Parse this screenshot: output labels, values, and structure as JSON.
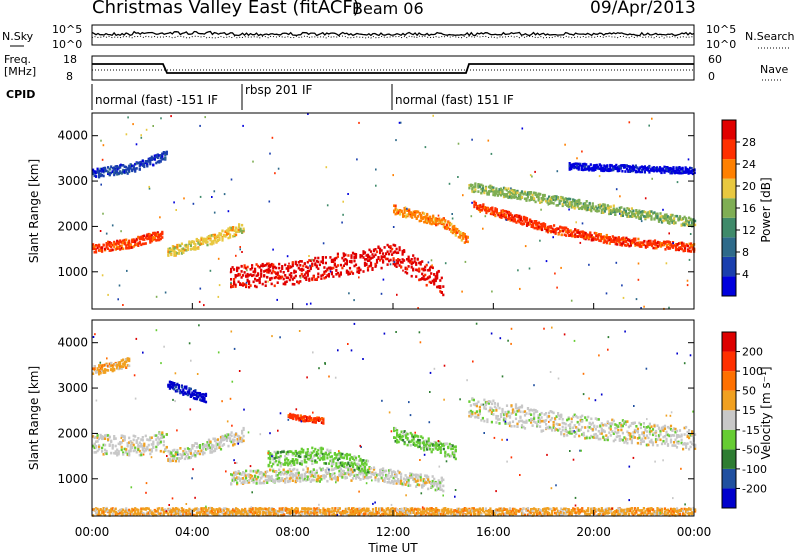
{
  "header": {
    "title": "Christmas Valley East (fitACF)",
    "beam": "Beam 06",
    "date": "09/Apr/2013"
  },
  "panels": {
    "nsky_label": "N.Sky",
    "nsearch_label": "N.Search",
    "nsky_ticks": [
      "10^5",
      "10^0"
    ],
    "nsky_right_ticks": [
      "10^5",
      "10^0"
    ],
    "freq_label_1": "Freq.",
    "freq_label_2": "[MHz]",
    "freq_ticks": [
      "18",
      "8"
    ],
    "nave_ticks": [
      "60",
      "0"
    ],
    "nave_label": "Nave",
    "cpid_label": "CPID",
    "cpid_segments": [
      {
        "label": "normal (fast) -151 IF",
        "start_h": 0,
        "end_h": 6
      },
      {
        "label": "rbsp 201 IF",
        "start_h": 6,
        "end_h": 12
      },
      {
        "label": "normal (fast) 151 IF",
        "start_h": 12,
        "end_h": 24
      }
    ]
  },
  "colors": {
    "power": [
      "#0000dd",
      "#1a3fae",
      "#2e6a8a",
      "#3f8a6a",
      "#7fae54",
      "#e8c840",
      "#ff8000",
      "#ff3000",
      "#e00000"
    ],
    "velocity": [
      "#0000cc",
      "#2050a0",
      "#2e7d32",
      "#66cc33",
      "#c8c8c8",
      "#f0a020",
      "#ff7000",
      "#ff3000",
      "#dd0000"
    ]
  },
  "colorbars": {
    "power": {
      "label": "Power [dB]",
      "ticks": [
        "28",
        "24",
        "20",
        "16",
        "12",
        "8",
        "4"
      ]
    },
    "velocity": {
      "label": "Velocity [m s⁻¹]",
      "ticks": [
        "200",
        "100",
        "50",
        "15",
        "-15",
        "-50",
        "-100",
        "-200"
      ]
    }
  },
  "chart_data": [
    {
      "type": "heatmap",
      "ylabel": "Slant Range [km]",
      "yticks": [
        "4000",
        "3000",
        "2000",
        "1000"
      ],
      "ylim": [
        180,
        4500
      ],
      "xlim": [
        0,
        24
      ],
      "quantity": "power",
      "bands": [
        {
          "x": [
            0,
            1.5,
            2.8
          ],
          "y": [
            1550,
            1650,
            1850
          ],
          "w": 200,
          "level": 7
        },
        {
          "x": [
            3,
            4.5,
            6
          ],
          "y": [
            1450,
            1700,
            2000
          ],
          "w": 220,
          "level": 5
        },
        {
          "x": [
            5.5,
            8,
            10,
            12,
            14
          ],
          "y": [
            900,
            1000,
            1200,
            1400,
            750
          ],
          "w": 500,
          "level": 8
        },
        {
          "x": [
            12,
            14,
            15
          ],
          "y": [
            2400,
            2100,
            1700
          ],
          "w": 200,
          "level": 6
        },
        {
          "x": [
            15.2,
            18,
            21,
            24
          ],
          "y": [
            2500,
            2000,
            1700,
            1550
          ],
          "w": 180,
          "level": 7
        },
        {
          "x": [
            15,
            24
          ],
          "y": [
            2900,
            2100
          ],
          "w": 200,
          "level": 4
        },
        {
          "x": [
            0,
            1.5,
            3
          ],
          "y": [
            3200,
            3300,
            3600
          ],
          "w": 200,
          "level": 1
        },
        {
          "x": [
            19,
            24
          ],
          "y": [
            3350,
            3250
          ],
          "w": 140,
          "level": 0
        }
      ]
    },
    {
      "type": "heatmap",
      "ylabel": "Slant Range [km]",
      "yticks": [
        "4000",
        "3000",
        "2000",
        "1000"
      ],
      "ylim": [
        180,
        4500
      ],
      "xlim": [
        0,
        24
      ],
      "xlabel": "Time UT",
      "xticks": [
        "00:00",
        "04:00",
        "08:00",
        "12:00",
        "16:00",
        "20:00",
        "00:00"
      ],
      "quantity": "velocity",
      "bands": [
        {
          "x": [
            0,
            1.5,
            3
          ],
          "y": [
            1800,
            1750,
            1850
          ],
          "w": 450,
          "level": 4
        },
        {
          "x": [
            3,
            5,
            6
          ],
          "y": [
            1500,
            1800,
            2000
          ],
          "w": 300,
          "level": 4
        },
        {
          "x": [
            5.5,
            8,
            11,
            14
          ],
          "y": [
            1050,
            1100,
            1150,
            900
          ],
          "w": 300,
          "level": 4
        },
        {
          "x": [
            7,
            9,
            11
          ],
          "y": [
            1450,
            1550,
            1300
          ],
          "w": 350,
          "level": 3
        },
        {
          "x": [
            12,
            14.5
          ],
          "y": [
            2000,
            1600
          ],
          "w": 300,
          "level": 3
        },
        {
          "x": [
            15,
            19,
            24
          ],
          "y": [
            2600,
            2200,
            1900
          ],
          "w": 500,
          "level": 4
        },
        {
          "x": [
            3,
            4.5
          ],
          "y": [
            3100,
            2800
          ],
          "w": 200,
          "level": 0
        },
        {
          "x": [
            7.8,
            9.2
          ],
          "y": [
            2400,
            2300
          ],
          "w": 120,
          "level": 7
        },
        {
          "x": [
            0,
            1.5
          ],
          "y": [
            3400,
            3600
          ],
          "w": 200,
          "level": 5
        },
        {
          "x": [
            0,
            24
          ],
          "y": [
            300,
            300
          ],
          "w": 160,
          "level": 5
        }
      ]
    }
  ]
}
